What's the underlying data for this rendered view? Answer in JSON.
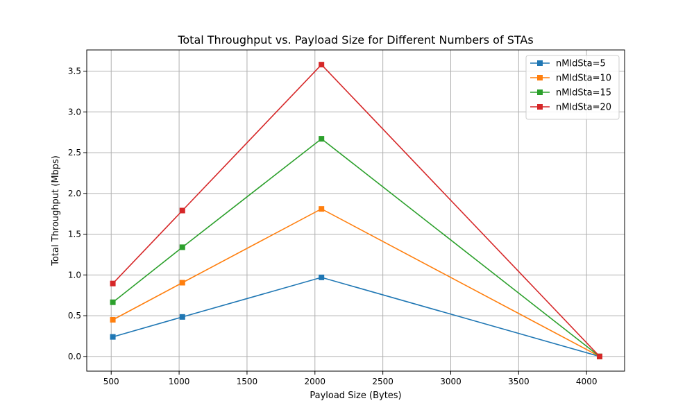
{
  "chart_data": {
    "type": "line",
    "title": "Total Throughput vs. Payload Size for Different Numbers of STAs",
    "xlabel": "Payload Size (Bytes)",
    "ylabel": "Total Throughput (Mbps)",
    "xlim": [
      320,
      4280
    ],
    "ylim": [
      -0.18,
      3.76
    ],
    "xticks": [
      500,
      1000,
      1500,
      2000,
      2500,
      3000,
      3500,
      4000
    ],
    "xtick_labels": [
      "500",
      "1000",
      "1500",
      "2000",
      "2500",
      "3000",
      "3500",
      "4000"
    ],
    "yticks": [
      0.0,
      0.5,
      1.0,
      1.5,
      2.0,
      2.5,
      3.0,
      3.5
    ],
    "ytick_labels": [
      "0.0",
      "0.5",
      "1.0",
      "1.5",
      "2.0",
      "2.5",
      "3.0",
      "3.5"
    ],
    "grid": true,
    "legend_position": "top-right",
    "marker": "square",
    "x": [
      512,
      1024,
      2048,
      4096
    ],
    "series": [
      {
        "name": "nMldSta=5",
        "color": "#1f77b4",
        "values": [
          0.24,
          0.485,
          0.97,
          0.0
        ]
      },
      {
        "name": "nMldSta=10",
        "color": "#ff7f0e",
        "values": [
          0.45,
          0.905,
          1.81,
          0.0
        ]
      },
      {
        "name": "nMldSta=15",
        "color": "#2ca02c",
        "values": [
          0.665,
          1.34,
          2.67,
          0.0
        ]
      },
      {
        "name": "nMldSta=20",
        "color": "#d62728",
        "values": [
          0.895,
          1.79,
          3.58,
          0.0
        ]
      }
    ]
  }
}
